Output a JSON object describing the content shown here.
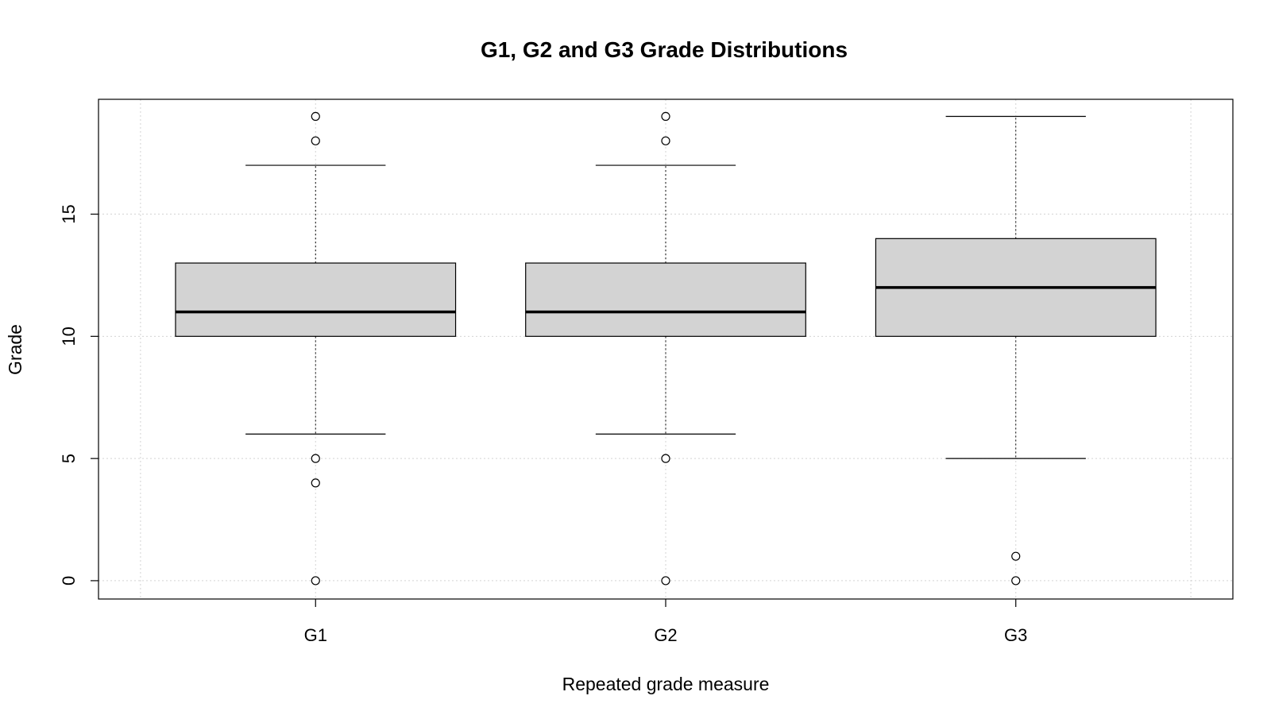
{
  "chart_data": {
    "type": "boxplot",
    "title": "G1, G2 and G3 Grade Distributions",
    "xlabel": "Repeated grade measure",
    "ylabel": "Grade",
    "categories": [
      "G1",
      "G2",
      "G3"
    ],
    "ylim": [
      -0.75,
      19.7
    ],
    "y_ticks": [
      0,
      5,
      10,
      15
    ],
    "grid": true,
    "grid_x": [
      0.5,
      1,
      2,
      3,
      3.5
    ],
    "boxes": [
      {
        "category": "G1",
        "whisker_low": 6,
        "q1": 10,
        "median": 11,
        "q3": 13,
        "whisker_high": 17,
        "outliers": [
          19,
          18,
          5,
          4,
          0
        ]
      },
      {
        "category": "G2",
        "whisker_low": 6,
        "q1": 10,
        "median": 11,
        "q3": 13,
        "whisker_high": 17,
        "outliers": [
          19,
          18,
          5,
          0
        ]
      },
      {
        "category": "G3",
        "whisker_low": 5,
        "q1": 10,
        "median": 12,
        "q3": 14,
        "whisker_high": 19,
        "outliers": [
          1,
          0
        ]
      }
    ],
    "colors": {
      "box_fill": "#d3d3d3",
      "grid": "#d3d3d3",
      "stroke": "#000000"
    }
  }
}
